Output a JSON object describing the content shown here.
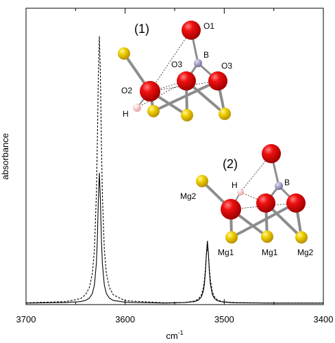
{
  "chart_data": {
    "type": "line",
    "xlabel": "cm",
    "xlabel_exponent": "-1",
    "ylabel": "absorbance",
    "xlim": [
      3700,
      3400
    ],
    "xticks": [
      3700,
      3600,
      3500,
      3400
    ],
    "xminorticks": [
      3650,
      3550,
      3450
    ],
    "ylim": [
      0,
      1
    ],
    "x": [
      3700,
      3660,
      3645,
      3640,
      3636,
      3633,
      3631,
      3629,
      3628,
      3627,
      3626,
      3625,
      3624,
      3623,
      3621,
      3619,
      3616,
      3612,
      3600,
      3560,
      3540,
      3530,
      3526,
      3523,
      3521,
      3520,
      3519,
      3518,
      3517,
      3516,
      3515,
      3514,
      3512,
      3510,
      3507,
      3502,
      3490,
      3450,
      3400
    ],
    "series": [
      {
        "color": "#000000",
        "style": "solid",
        "values": [
          0.005,
          0.007,
          0.01,
          0.014,
          0.022,
          0.038,
          0.066,
          0.14,
          0.225,
          0.357,
          0.445,
          0.357,
          0.225,
          0.14,
          0.066,
          0.038,
          0.022,
          0.014,
          0.008,
          0.005,
          0.007,
          0.01,
          0.015,
          0.026,
          0.047,
          0.07,
          0.11,
          0.173,
          0.215,
          0.173,
          0.11,
          0.07,
          0.034,
          0.021,
          0.013,
          0.009,
          0.006,
          0.005,
          0.005
        ]
      },
      {
        "color": "#000000",
        "style": "dashed",
        "values": [
          0.006,
          0.01,
          0.02,
          0.033,
          0.058,
          0.107,
          0.185,
          0.374,
          0.554,
          0.781,
          0.905,
          0.781,
          0.554,
          0.374,
          0.185,
          0.107,
          0.058,
          0.033,
          0.013,
          0.006,
          0.007,
          0.012,
          0.019,
          0.033,
          0.058,
          0.083,
          0.121,
          0.169,
          0.195,
          0.169,
          0.121,
          0.083,
          0.043,
          0.027,
          0.016,
          0.01,
          0.007,
          0.005,
          0.005
        ]
      }
    ],
    "annotations": [
      "(1)",
      "O1",
      "B",
      "O3",
      "O3",
      "O2",
      "H",
      "(2)",
      "H",
      "B",
      "Mg2",
      "Mg1",
      "Mg1",
      "Mg2"
    ]
  }
}
